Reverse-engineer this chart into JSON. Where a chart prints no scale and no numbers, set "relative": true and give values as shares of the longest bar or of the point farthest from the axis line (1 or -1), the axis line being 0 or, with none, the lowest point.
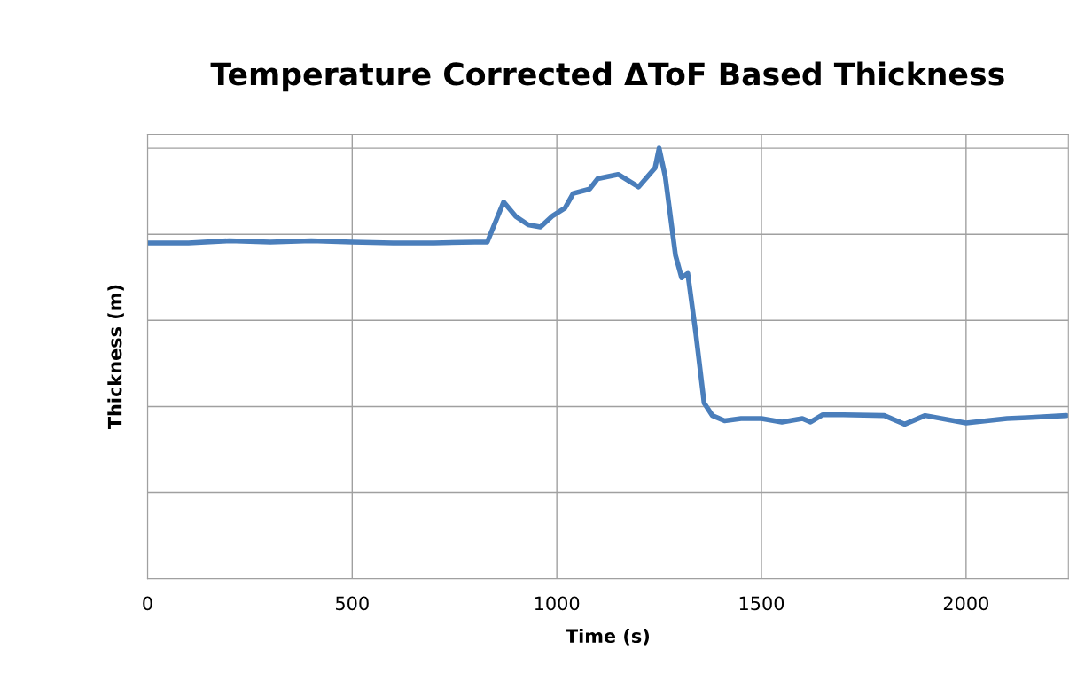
{
  "chart_data": {
    "type": "line",
    "title": "Temperature Corrected ΔToF Based Thickness",
    "xlabel": "Time (s)",
    "ylabel": "Thickness (m)",
    "relative": true,
    "tick_labels": "x",
    "grid": true,
    "xlim": [
      0,
      2250
    ],
    "xticks": [
      0,
      500,
      1000,
      1500,
      2000
    ],
    "x": [
      0,
      100,
      200,
      300,
      400,
      500,
      600,
      700,
      800,
      830,
      870,
      900,
      930,
      960,
      990,
      1020,
      1040,
      1080,
      1100,
      1150,
      1200,
      1240,
      1250,
      1265,
      1290,
      1305,
      1320,
      1340,
      1360,
      1380,
      1410,
      1450,
      1500,
      1550,
      1600,
      1620,
      1650,
      1700,
      1800,
      1850,
      1900,
      2000,
      2050,
      2100,
      2150,
      2245
    ],
    "series": [
      {
        "color": "#4a7ebb",
        "values": [
          0.78,
          0.78,
          0.785,
          0.782,
          0.785,
          0.782,
          0.78,
          0.78,
          0.782,
          0.782,
          0.875,
          0.841,
          0.822,
          0.817,
          0.843,
          0.861,
          0.895,
          0.905,
          0.929,
          0.939,
          0.91,
          0.954,
          1.0,
          0.934,
          0.751,
          0.699,
          0.709,
          0.567,
          0.408,
          0.379,
          0.367,
          0.372,
          0.372,
          0.364,
          0.372,
          0.364,
          0.381,
          0.381,
          0.379,
          0.359,
          0.379,
          0.362,
          0.367,
          0.372,
          0.374,
          0.379
        ]
      }
    ]
  }
}
